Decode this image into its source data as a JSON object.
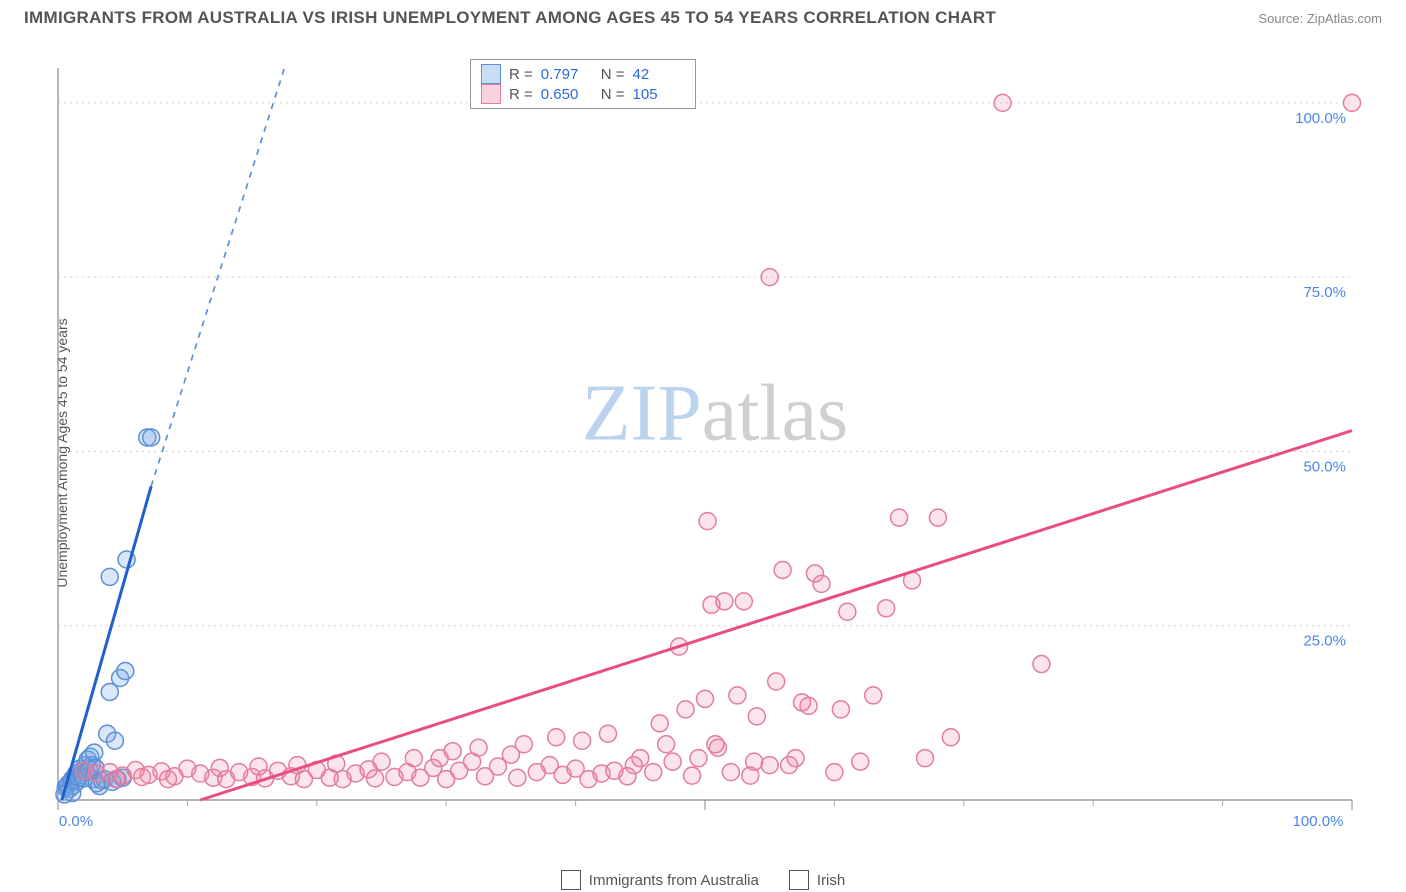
{
  "title": "IMMIGRANTS FROM AUSTRALIA VS IRISH UNEMPLOYMENT AMONG AGES 45 TO 54 YEARS CORRELATION CHART",
  "source": "Source: ZipAtlas.com",
  "y_axis_label": "Unemployment Among Ages 45 to 54 years",
  "watermark_a": "ZIP",
  "watermark_b": "atlas",
  "chart": {
    "type": "scatter",
    "xlim": [
      0,
      100
    ],
    "ylim": [
      0,
      105
    ],
    "x_ticks_major": [
      0,
      50,
      100
    ],
    "x_tick_labels": {
      "0": "0.0%",
      "100": "100.0%"
    },
    "x_minor_step": 10,
    "y_ticks": [
      25,
      50,
      75,
      100
    ],
    "y_tick_labels": {
      "25": "25.0%",
      "50": "50.0%",
      "75": "75.0%",
      "100": "100.0%"
    },
    "background_color": "#ffffff",
    "grid_color": "#d0d0d0",
    "axis_color": "#888888",
    "tick_label_color": "#4a86e8",
    "marker_radius": 8.5,
    "series": [
      {
        "id": "a",
        "label": "Immigrants from Australia",
        "stroke": "#5b8fd6",
        "fill": "rgba(120,170,230,0.28)",
        "trend_color": "#1f5fd0",
        "R": "0.797",
        "N": "42",
        "trend_solid": {
          "x1": 0.3,
          "y1": 0,
          "x2": 7.2,
          "y2": 45
        },
        "trend_dash": {
          "x1": 7.2,
          "y1": 45,
          "x2": 17.5,
          "y2": 105
        },
        "points": [
          [
            0.6,
            1.8
          ],
          [
            0.7,
            2.0
          ],
          [
            0.8,
            2.3
          ],
          [
            0.9,
            1.6
          ],
          [
            1.0,
            2.6
          ],
          [
            1.1,
            3.0
          ],
          [
            1.2,
            2.1
          ],
          [
            1.3,
            3.4
          ],
          [
            1.4,
            3.8
          ],
          [
            1.5,
            2.7
          ],
          [
            1.6,
            3.2
          ],
          [
            1.7,
            4.5
          ],
          [
            1.8,
            3.6
          ],
          [
            1.9,
            4.2
          ],
          [
            2.0,
            3.1
          ],
          [
            2.1,
            5.0
          ],
          [
            2.2,
            4.0
          ],
          [
            2.3,
            5.8
          ],
          [
            2.4,
            4.4
          ],
          [
            2.5,
            6.2
          ],
          [
            2.6,
            5.0
          ],
          [
            2.7,
            3.0
          ],
          [
            2.8,
            6.8
          ],
          [
            2.9,
            4.6
          ],
          [
            3.0,
            2.4
          ],
          [
            3.2,
            2.0
          ],
          [
            3.4,
            2.8
          ],
          [
            3.6,
            3.0
          ],
          [
            3.8,
            9.5
          ],
          [
            4.0,
            15.5
          ],
          [
            4.2,
            2.6
          ],
          [
            4.4,
            8.5
          ],
          [
            4.6,
            3.0
          ],
          [
            4.8,
            17.5
          ],
          [
            5.0,
            3.2
          ],
          [
            5.2,
            18.5
          ],
          [
            4.0,
            32.0
          ],
          [
            5.3,
            34.5
          ],
          [
            6.9,
            52.0
          ],
          [
            7.2,
            52.0
          ],
          [
            1.1,
            1.0
          ],
          [
            0.5,
            0.8
          ]
        ]
      },
      {
        "id": "b",
        "label": "Irish",
        "stroke": "#e37da0",
        "fill": "rgba(235,130,160,0.22)",
        "trend_color": "#e84e7f",
        "R": "0.650",
        "N": "105",
        "trend_solid": {
          "x1": 11,
          "y1": 0,
          "x2": 100,
          "y2": 53
        },
        "points": [
          [
            2.0,
            4.2
          ],
          [
            3.0,
            3.8
          ],
          [
            4.0,
            4.0
          ],
          [
            5.0,
            3.5
          ],
          [
            6.0,
            4.3
          ],
          [
            7.0,
            3.6
          ],
          [
            8.0,
            4.1
          ],
          [
            9.0,
            3.4
          ],
          [
            10.0,
            4.5
          ],
          [
            11.0,
            3.8
          ],
          [
            12.0,
            3.2
          ],
          [
            12.5,
            4.6
          ],
          [
            13.0,
            3.0
          ],
          [
            14.0,
            4.0
          ],
          [
            15.0,
            3.3
          ],
          [
            15.5,
            4.8
          ],
          [
            16.0,
            3.1
          ],
          [
            17.0,
            4.2
          ],
          [
            18.0,
            3.4
          ],
          [
            18.5,
            5.0
          ],
          [
            19.0,
            3.0
          ],
          [
            20.0,
            4.3
          ],
          [
            21.0,
            3.2
          ],
          [
            21.5,
            5.2
          ],
          [
            22.0,
            3.0
          ],
          [
            23.0,
            3.8
          ],
          [
            24.0,
            4.4
          ],
          [
            24.5,
            3.1
          ],
          [
            25.0,
            5.5
          ],
          [
            26.0,
            3.3
          ],
          [
            27.0,
            4.0
          ],
          [
            27.5,
            6.0
          ],
          [
            28.0,
            3.2
          ],
          [
            29.0,
            4.6
          ],
          [
            29.5,
            6.0
          ],
          [
            30.0,
            3.0
          ],
          [
            30.5,
            7.0
          ],
          [
            31.0,
            4.2
          ],
          [
            32.0,
            5.5
          ],
          [
            32.5,
            7.5
          ],
          [
            33.0,
            3.4
          ],
          [
            34.0,
            4.8
          ],
          [
            35.0,
            6.5
          ],
          [
            35.5,
            3.2
          ],
          [
            36.0,
            8.0
          ],
          [
            37.0,
            4.0
          ],
          [
            38.0,
            5.0
          ],
          [
            38.5,
            9.0
          ],
          [
            39.0,
            3.6
          ],
          [
            40.0,
            4.5
          ],
          [
            40.5,
            8.5
          ],
          [
            41.0,
            3.0
          ],
          [
            42.0,
            3.8
          ],
          [
            42.5,
            9.5
          ],
          [
            43.0,
            4.2
          ],
          [
            44.0,
            3.4
          ],
          [
            45.0,
            6.0
          ],
          [
            46.0,
            4.0
          ],
          [
            47.0,
            8.0
          ],
          [
            48.0,
            22.0
          ],
          [
            49.0,
            3.5
          ],
          [
            50.0,
            14.5
          ],
          [
            50.5,
            28.0
          ],
          [
            50.2,
            40.0
          ],
          [
            51.0,
            7.5
          ],
          [
            52.0,
            4.0
          ],
          [
            52.5,
            15.0
          ],
          [
            53.0,
            28.5
          ],
          [
            53.5,
            3.5
          ],
          [
            55.0,
            5.0
          ],
          [
            55.5,
            17.0
          ],
          [
            56.0,
            33.0
          ],
          [
            57.0,
            6.0
          ],
          [
            58.0,
            13.5
          ],
          [
            59.0,
            31.0
          ],
          [
            60.0,
            4.0
          ],
          [
            61.0,
            27.0
          ],
          [
            65.0,
            40.5
          ],
          [
            62.0,
            5.5
          ],
          [
            63.0,
            15.0
          ],
          [
            66.0,
            31.5
          ],
          [
            67.0,
            6.0
          ],
          [
            68.0,
            40.5
          ],
          [
            55.0,
            75.0
          ],
          [
            73.0,
            100.0
          ],
          [
            76.0,
            19.5
          ],
          [
            100.0,
            100.0
          ],
          [
            44.5,
            5.0
          ],
          [
            46.5,
            11.0
          ],
          [
            48.5,
            13.0
          ],
          [
            49.5,
            6.0
          ],
          [
            51.5,
            28.5
          ],
          [
            54.0,
            12.0
          ],
          [
            56.5,
            5.0
          ],
          [
            58.5,
            32.5
          ],
          [
            60.5,
            13.0
          ],
          [
            64.0,
            27.5
          ],
          [
            69.0,
            9.0
          ],
          [
            47.5,
            5.5
          ],
          [
            50.8,
            8.0
          ],
          [
            53.8,
            5.5
          ],
          [
            57.5,
            14.0
          ],
          [
            4.5,
            3.0
          ],
          [
            6.5,
            3.3
          ],
          [
            8.5,
            3.0
          ]
        ]
      }
    ]
  },
  "legend_top_labels": {
    "R": "R =",
    "N": "N ="
  },
  "legend_bottom": [
    {
      "series": "a",
      "label": "Immigrants from Australia"
    },
    {
      "series": "b",
      "label": "Irish"
    }
  ]
}
